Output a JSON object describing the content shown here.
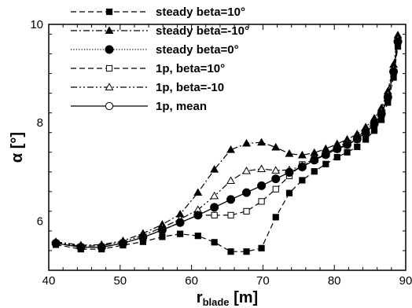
{
  "chart_data": {
    "type": "line",
    "x_range": [
      40,
      90
    ],
    "y_range": [
      5.0,
      10.0
    ],
    "x_ticks": [
      40,
      50,
      60,
      70,
      80,
      90
    ],
    "y_ticks": [
      6,
      8,
      10
    ],
    "x_tick_labels": [
      "40",
      "50",
      "60",
      "70",
      "80",
      "90"
    ],
    "y_tick_labels": [
      "6",
      "8",
      "10"
    ],
    "xlabel": {
      "main": "r",
      "sub": "blade",
      "unit": " [m]"
    },
    "ylabel": {
      "main": "α",
      "unit": " [°]"
    },
    "legend_placement": "top-left",
    "grid": false,
    "series": [
      {
        "name": "steady beta=10°",
        "marker": "square-filled",
        "dash": "dashed",
        "points": [
          [
            41.0,
            5.52
          ],
          [
            44.5,
            5.43
          ],
          [
            47.4,
            5.43
          ],
          [
            50.4,
            5.51
          ],
          [
            53.2,
            5.58
          ],
          [
            55.9,
            5.68
          ],
          [
            58.4,
            5.74
          ],
          [
            60.9,
            5.7
          ],
          [
            63.2,
            5.57
          ],
          [
            65.5,
            5.38
          ],
          [
            67.7,
            5.38
          ],
          [
            69.8,
            5.45
          ],
          [
            71.8,
            6.08
          ],
          [
            73.7,
            6.57
          ],
          [
            75.5,
            6.83
          ],
          [
            77.2,
            7.01
          ],
          [
            78.8,
            7.16
          ],
          [
            80.4,
            7.3
          ],
          [
            81.8,
            7.4
          ],
          [
            83.2,
            7.51
          ],
          [
            84.4,
            7.66
          ],
          [
            85.6,
            7.84
          ],
          [
            86.6,
            8.06
          ],
          [
            87.5,
            8.41
          ],
          [
            88.3,
            8.92
          ],
          [
            88.9,
            9.55
          ]
        ]
      },
      {
        "name": "steady beta=-10°",
        "marker": "triangle-filled",
        "dash": "dashdot",
        "points": [
          [
            41.0,
            5.58
          ],
          [
            44.5,
            5.51
          ],
          [
            47.4,
            5.52
          ],
          [
            50.4,
            5.6
          ],
          [
            53.2,
            5.75
          ],
          [
            55.9,
            5.93
          ],
          [
            58.4,
            6.14
          ],
          [
            60.9,
            6.58
          ],
          [
            63.2,
            7.05
          ],
          [
            65.5,
            7.45
          ],
          [
            67.7,
            7.58
          ],
          [
            69.8,
            7.6
          ],
          [
            71.8,
            7.5
          ],
          [
            73.7,
            7.37
          ],
          [
            75.5,
            7.34
          ],
          [
            77.2,
            7.39
          ],
          [
            78.8,
            7.47
          ],
          [
            80.4,
            7.57
          ],
          [
            81.8,
            7.66
          ],
          [
            83.2,
            7.77
          ],
          [
            84.4,
            7.91
          ],
          [
            85.6,
            8.09
          ],
          [
            86.6,
            8.3
          ],
          [
            87.5,
            8.64
          ],
          [
            88.3,
            9.18
          ],
          [
            88.9,
            9.78
          ]
        ]
      },
      {
        "name": "steady beta=0°",
        "marker": "circle-filled",
        "dash": "dotted",
        "points": [
          [
            41.0,
            5.55
          ],
          [
            44.5,
            5.47
          ],
          [
            47.4,
            5.47
          ],
          [
            50.4,
            5.55
          ],
          [
            53.2,
            5.67
          ],
          [
            55.9,
            5.82
          ],
          [
            58.4,
            5.97
          ],
          [
            60.9,
            6.12
          ],
          [
            63.2,
            6.28
          ],
          [
            65.5,
            6.44
          ],
          [
            67.7,
            6.58
          ],
          [
            69.8,
            6.72
          ],
          [
            71.8,
            6.86
          ],
          [
            73.7,
            6.99
          ],
          [
            75.5,
            7.1
          ],
          [
            77.2,
            7.24
          ],
          [
            78.8,
            7.35
          ],
          [
            80.4,
            7.47
          ],
          [
            81.8,
            7.56
          ],
          [
            83.2,
            7.67
          ],
          [
            84.4,
            7.8
          ],
          [
            85.6,
            7.98
          ],
          [
            86.6,
            8.18
          ],
          [
            87.5,
            8.52
          ],
          [
            88.3,
            9.04
          ],
          [
            88.9,
            9.65
          ]
        ]
      },
      {
        "name": "1p, beta=10°",
        "marker": "square-open",
        "dash": "dashed",
        "points": [
          [
            41.0,
            5.55
          ],
          [
            44.5,
            5.47
          ],
          [
            47.4,
            5.47
          ],
          [
            50.4,
            5.55
          ],
          [
            53.2,
            5.67
          ],
          [
            55.9,
            5.82
          ],
          [
            58.4,
            5.97
          ],
          [
            60.9,
            6.12
          ],
          [
            63.2,
            6.12
          ],
          [
            65.5,
            6.12
          ],
          [
            67.7,
            6.2
          ],
          [
            69.8,
            6.4
          ],
          [
            71.8,
            6.65
          ],
          [
            73.7,
            6.92
          ],
          [
            75.5,
            7.15
          ],
          [
            77.2,
            7.26
          ],
          [
            78.8,
            7.35
          ],
          [
            80.4,
            7.46
          ],
          [
            81.8,
            7.55
          ],
          [
            83.2,
            7.66
          ],
          [
            84.4,
            7.79
          ],
          [
            85.6,
            7.97
          ],
          [
            86.6,
            8.17
          ],
          [
            87.5,
            8.5
          ],
          [
            88.3,
            9.02
          ],
          [
            88.9,
            9.63
          ]
        ]
      },
      {
        "name": "1p, beta=-10",
        "marker": "triangle-open",
        "dash": "dashdotdot",
        "points": [
          [
            41.0,
            5.57
          ],
          [
            44.5,
            5.49
          ],
          [
            47.4,
            5.5
          ],
          [
            50.4,
            5.58
          ],
          [
            53.2,
            5.71
          ],
          [
            55.9,
            5.87
          ],
          [
            58.4,
            6.04
          ],
          [
            60.9,
            6.23
          ],
          [
            63.2,
            6.51
          ],
          [
            65.5,
            6.82
          ],
          [
            67.7,
            7.02
          ],
          [
            69.8,
            7.06
          ],
          [
            71.8,
            7.03
          ],
          [
            73.7,
            7.04
          ],
          [
            75.5,
            7.12
          ],
          [
            77.2,
            7.25
          ],
          [
            78.8,
            7.37
          ],
          [
            80.4,
            7.5
          ],
          [
            81.8,
            7.6
          ],
          [
            83.2,
            7.71
          ],
          [
            84.4,
            7.84
          ],
          [
            85.6,
            8.02
          ],
          [
            86.6,
            8.23
          ],
          [
            87.5,
            8.57
          ],
          [
            88.3,
            9.09
          ],
          [
            88.9,
            9.7
          ]
        ]
      },
      {
        "name": "1p, mean",
        "marker": "circle-open",
        "dash": "solid",
        "points": [
          [
            41.0,
            5.55
          ],
          [
            44.5,
            5.47
          ],
          [
            47.4,
            5.47
          ],
          [
            50.4,
            5.55
          ],
          [
            53.2,
            5.67
          ],
          [
            55.9,
            5.82
          ],
          [
            58.4,
            5.97
          ],
          [
            60.9,
            6.12
          ],
          [
            63.2,
            6.28
          ],
          [
            65.5,
            6.44
          ],
          [
            67.7,
            6.58
          ],
          [
            69.8,
            6.72
          ],
          [
            71.8,
            6.86
          ],
          [
            73.7,
            6.99
          ],
          [
            75.5,
            7.1
          ],
          [
            77.2,
            7.24
          ],
          [
            78.8,
            7.35
          ],
          [
            80.4,
            7.47
          ],
          [
            81.8,
            7.56
          ],
          [
            83.2,
            7.67
          ],
          [
            84.4,
            7.8
          ],
          [
            85.6,
            7.98
          ],
          [
            86.6,
            8.18
          ],
          [
            87.5,
            8.52
          ],
          [
            88.3,
            9.04
          ],
          [
            88.9,
            9.65
          ]
        ]
      }
    ]
  }
}
